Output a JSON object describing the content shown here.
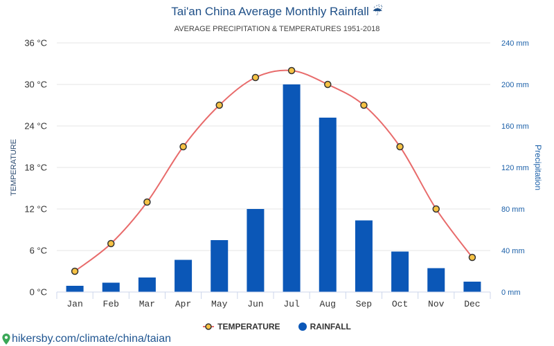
{
  "chart_data": {
    "type": "bar",
    "title": "Tai'an China Average Monthly Rainfall ☔",
    "subtitle": "AVERAGE PRECIPITATION & TEMPERATURES 1951-2018",
    "categories": [
      "Jan",
      "Feb",
      "Mar",
      "Apr",
      "May",
      "Jun",
      "Jul",
      "Aug",
      "Sep",
      "Oct",
      "Nov",
      "Dec"
    ],
    "series": [
      {
        "name": "TEMPERATURE",
        "type": "line",
        "axis": "left",
        "values": [
          3,
          7,
          13,
          21,
          27,
          31,
          32,
          30,
          27,
          21,
          12,
          5
        ]
      },
      {
        "name": "RAINFALL",
        "type": "bar",
        "axis": "right",
        "values": [
          6,
          9,
          14,
          31,
          50,
          80,
          200,
          168,
          69,
          39,
          23,
          10
        ]
      }
    ],
    "y_left": {
      "label": "TEMPERATURE",
      "ylim": [
        0,
        36
      ],
      "ticks": [
        0,
        6,
        12,
        18,
        24,
        30,
        36
      ],
      "tick_labels": [
        "0 °C",
        "6 °C",
        "12 °C",
        "18 °C",
        "24 °C",
        "30 °C",
        "36 °C"
      ]
    },
    "y_right": {
      "label": "Precipitation",
      "ylim": [
        0,
        240
      ],
      "ticks": [
        0,
        40,
        80,
        120,
        160,
        200,
        240
      ],
      "tick_labels": [
        "0 mm",
        "40 mm",
        "80 mm",
        "120 mm",
        "160 mm",
        "200 mm",
        "240 mm"
      ]
    },
    "grid": true,
    "legend": {
      "position": "bottom"
    }
  },
  "footer": {
    "text": "hikersby.com/climate/china/taian",
    "icon": "location-pin-icon"
  },
  "colors": {
    "title": "#1e4f87",
    "subtitle": "#444444",
    "left_axis_title": "#2b4a70",
    "right_axis": "#1a5fa8",
    "temperature_line": "#e86b6b",
    "temperature_marker_fill": "#f6c244",
    "temperature_marker_stroke": "#333333",
    "rainfall_bar": "#0b57b7",
    "gridline": "#e6e6e6",
    "axis_line": "#ccd6eb",
    "footer_text": "#1f5591",
    "footer_icon": "#3aa757"
  }
}
